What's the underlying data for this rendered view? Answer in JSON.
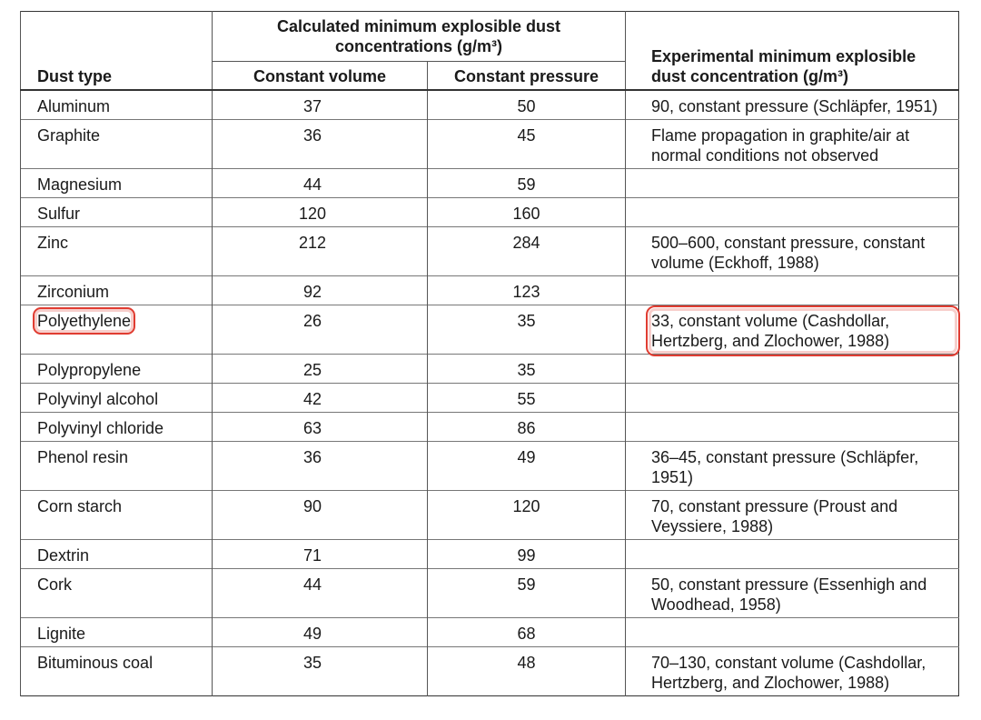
{
  "table": {
    "header": {
      "dust_type": "Dust type",
      "calculated": "Calculated minimum  explosible dust concentrations (g/m³)",
      "constant_volume": "Constant volume",
      "constant_pressure": "Constant pressure",
      "experimental": "Experimental minimum explosible dust concentration (g/m³)"
    },
    "rows": [
      [
        "Aluminum",
        37,
        50,
        "90, constant pressure (Schläpfer, 1951)"
      ],
      [
        "Graphite",
        36,
        45,
        "Flame propagation in graphite/air at normal conditions not observed"
      ],
      [
        "Magnesium",
        44,
        59,
        null
      ],
      [
        "Sulfur",
        120,
        160,
        null
      ],
      [
        "Zinc",
        212,
        284,
        "500–600, constant pressure, constant volume (Eckhoff, 1988)"
      ],
      [
        "Zirconium",
        92,
        123,
        null
      ],
      [
        "Polyethylene",
        26,
        35,
        "33, constant volume (Cashdollar, Hertzberg, and Zlochower, 1988)"
      ],
      [
        "Polypropylene",
        25,
        35,
        null
      ],
      [
        "Polyvinyl alcohol",
        42,
        55,
        null
      ],
      [
        "Polyvinyl chloride",
        63,
        86,
        null
      ],
      [
        "Phenol resin",
        36,
        49,
        "36–45, constant pressure (Schläpfer, 1951)"
      ],
      [
        "Corn starch",
        90,
        120,
        "70, constant pressure (Proust and Veyssiere, 1988)"
      ],
      [
        "Dextrin",
        71,
        99,
        null
      ],
      [
        "Cork",
        44,
        59,
        "50, constant pressure (Essenhigh and Woodhead, 1958)"
      ],
      [
        "Lignite",
        49,
        68,
        null
      ],
      [
        "Bituminous coal",
        35,
        48,
        "70–130, constant volume (Cashdollar, Hertzberg, and Zlochower, 1988)"
      ]
    ],
    "highlighted_row": 6,
    "highlight_color": "#e03c31"
  }
}
